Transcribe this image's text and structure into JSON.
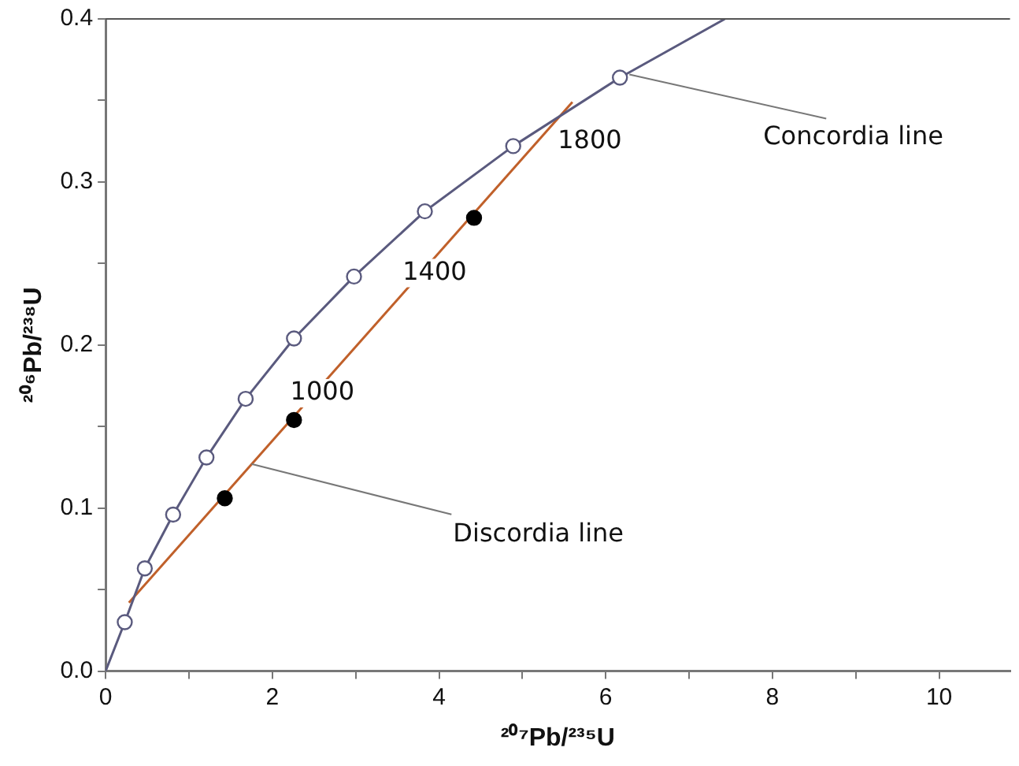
{
  "chart_data": {
    "type": "line",
    "xlabel": "²⁰⁷Pb/²³⁵U",
    "ylabel": "²⁰⁶Pb/²³⁸U",
    "xlim": [
      0,
      10.85
    ],
    "ylim": [
      0,
      0.4
    ],
    "xticks": [
      0,
      {
        "value": 1,
        "label": null
      },
      2,
      {
        "value": 3,
        "label": null
      },
      4,
      {
        "value": 5,
        "label": null
      },
      6,
      {
        "value": 7,
        "label": null
      },
      8,
      {
        "value": 9,
        "label": null
      },
      10
    ],
    "yticks": [
      {
        "value": 0,
        "label": "0.0"
      },
      {
        "value": 0.05,
        "label": null
      },
      0.1,
      {
        "value": 0.15,
        "label": null
      },
      0.2,
      {
        "value": 0.25,
        "label": null
      },
      0.3,
      {
        "value": 0.35,
        "label": null
      },
      0.4
    ],
    "grid": false,
    "legend": false,
    "series": [
      {
        "type": "line",
        "color": "#5a5a7e",
        "marker": "none",
        "x": [
          0,
          0.23,
          0.47,
          0.81,
          1.21,
          1.68,
          2.26,
          2.98,
          3.83,
          4.89,
          6.17,
          7.43
        ],
        "values": [
          0,
          0.03,
          0.063,
          0.096,
          0.131,
          0.167,
          0.204,
          0.242,
          0.282,
          0.322,
          0.364,
          0.4
        ]
      },
      {
        "type": "scatter",
        "color": "#5a5a7e",
        "marker": "circle",
        "x": [
          0.23,
          0.47,
          0.81,
          1.21,
          1.68,
          2.26,
          2.98,
          3.83,
          4.89,
          6.17
        ],
        "values": [
          0.03,
          0.063,
          0.096,
          0.131,
          0.167,
          0.204,
          0.242,
          0.282,
          0.322,
          0.364
        ]
      },
      {
        "type": "line",
        "color": "#c0602a",
        "marker": "none",
        "x": [
          0.28,
          5.6
        ],
        "values": [
          0.042,
          0.349
        ]
      },
      {
        "type": "scatter",
        "color": "#000000",
        "marker": "circle",
        "x": [
          1.43,
          2.26,
          4.42
        ],
        "values": [
          0.106,
          0.154,
          0.278
        ]
      }
    ],
    "annotations": [
      {
        "text": "1000",
        "x": 2.26,
        "y": 0.154
      },
      {
        "text": "1400",
        "x": 4.42,
        "y": 0.278
      },
      {
        "text": "1800",
        "x": 5.6,
        "y": 0.349
      },
      {
        "text": "Concordia line",
        "x": 6.17,
        "y": 0.364
      },
      {
        "text": "Discordia line",
        "x": 1.75,
        "y": 0.127
      }
    ]
  }
}
